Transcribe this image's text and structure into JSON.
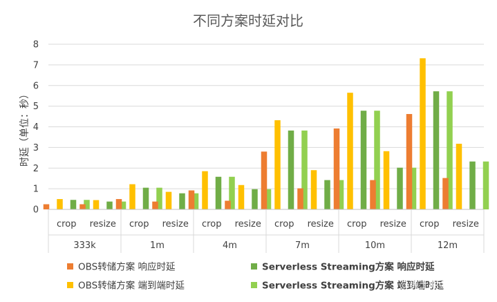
{
  "chart_data": {
    "type": "bar",
    "title": "不同方案时延对比",
    "ylabel": "时延（单位：秒）",
    "xlabel": "",
    "ylim": [
      0,
      8
    ],
    "yticks": [
      "0",
      "1",
      "2",
      "3",
      "4",
      "5",
      "6",
      "7",
      "8"
    ],
    "grid": "horizontal",
    "legend_position": "bottom",
    "groups": [
      "333k",
      "1m",
      "4m",
      "7m",
      "10m",
      "12m"
    ],
    "subcategories": [
      "crop",
      "resize"
    ],
    "series": [
      {
        "name": "OBS转储方案 响应时延",
        "color": "#ED7D31",
        "values": [
          [
            0.25,
            0.25
          ],
          [
            0.5,
            0.38
          ],
          [
            0.92,
            0.42
          ],
          [
            2.8,
            1.02
          ],
          [
            3.92,
            1.42
          ],
          [
            4.62,
            1.52
          ]
        ]
      },
      {
        "name": "OBS转储方案 端到端时延",
        "color": "#FFC000",
        "values": [
          [
            0.5,
            0.45
          ],
          [
            1.22,
            0.85
          ],
          [
            1.85,
            1.18
          ],
          [
            4.32,
            1.9
          ],
          [
            5.65,
            2.82
          ],
          [
            7.32,
            3.18
          ]
        ]
      },
      {
        "name": "Serverless Streaming方案 响应时延",
        "color": "#70AD47",
        "values": [
          [
            0.46,
            0.38
          ],
          [
            1.05,
            0.78
          ],
          [
            1.58,
            0.98
          ],
          [
            3.82,
            1.42
          ],
          [
            4.78,
            2.02
          ],
          [
            5.72,
            2.32
          ]
        ]
      },
      {
        "name": "Serverless Streaming方案 端到端时延",
        "color": "#92D050",
        "values": [
          [
            0.46,
            0.38
          ],
          [
            1.05,
            0.78
          ],
          [
            1.58,
            0.98
          ],
          [
            3.82,
            1.42
          ],
          [
            4.78,
            2.02
          ],
          [
            5.72,
            2.32
          ]
        ]
      }
    ]
  },
  "watermark": "@稀土掘金技术社区"
}
